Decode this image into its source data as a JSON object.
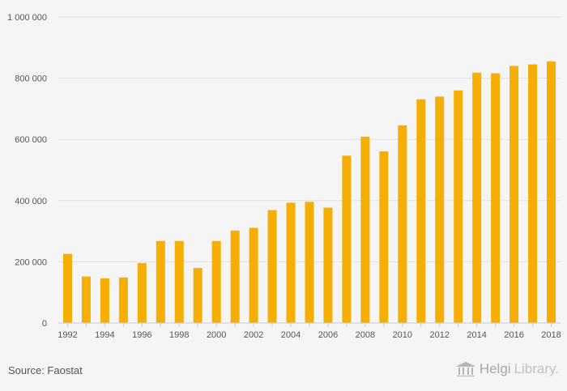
{
  "chart_data": {
    "type": "bar",
    "categories": [
      "1992",
      "1993",
      "1994",
      "1995",
      "1996",
      "1997",
      "1998",
      "1999",
      "2000",
      "2001",
      "2002",
      "2003",
      "2004",
      "2005",
      "2006",
      "2007",
      "2008",
      "2009",
      "2010",
      "2011",
      "2012",
      "2013",
      "2014",
      "2015",
      "2016",
      "2017",
      "2018"
    ],
    "values": [
      226000,
      152000,
      146000,
      149000,
      196000,
      268000,
      268000,
      180000,
      268000,
      302000,
      311000,
      369000,
      393000,
      396000,
      377000,
      547000,
      609000,
      561000,
      646000,
      731000,
      740000,
      760000,
      818000,
      816000,
      840000,
      845000,
      855000
    ],
    "x_tick_labels": [
      "1992",
      "1994",
      "1996",
      "1998",
      "2000",
      "2002",
      "2004",
      "2006",
      "2008",
      "2010",
      "2012",
      "2014",
      "2016",
      "2018"
    ],
    "y_ticks": [
      0,
      200000,
      400000,
      600000,
      800000,
      1000000
    ],
    "y_tick_labels": [
      "0",
      "200 000",
      "400 000",
      "600 000",
      "800 000",
      "1 000 000"
    ],
    "ylim": [
      0,
      1000000
    ],
    "title": "",
    "xlabel": "",
    "ylabel": "",
    "grid": true,
    "bar_color": "#f5ae06"
  },
  "footer": {
    "source": "Source: Faostat",
    "brand_part1": "Helgi",
    "brand_part2": "Library."
  }
}
